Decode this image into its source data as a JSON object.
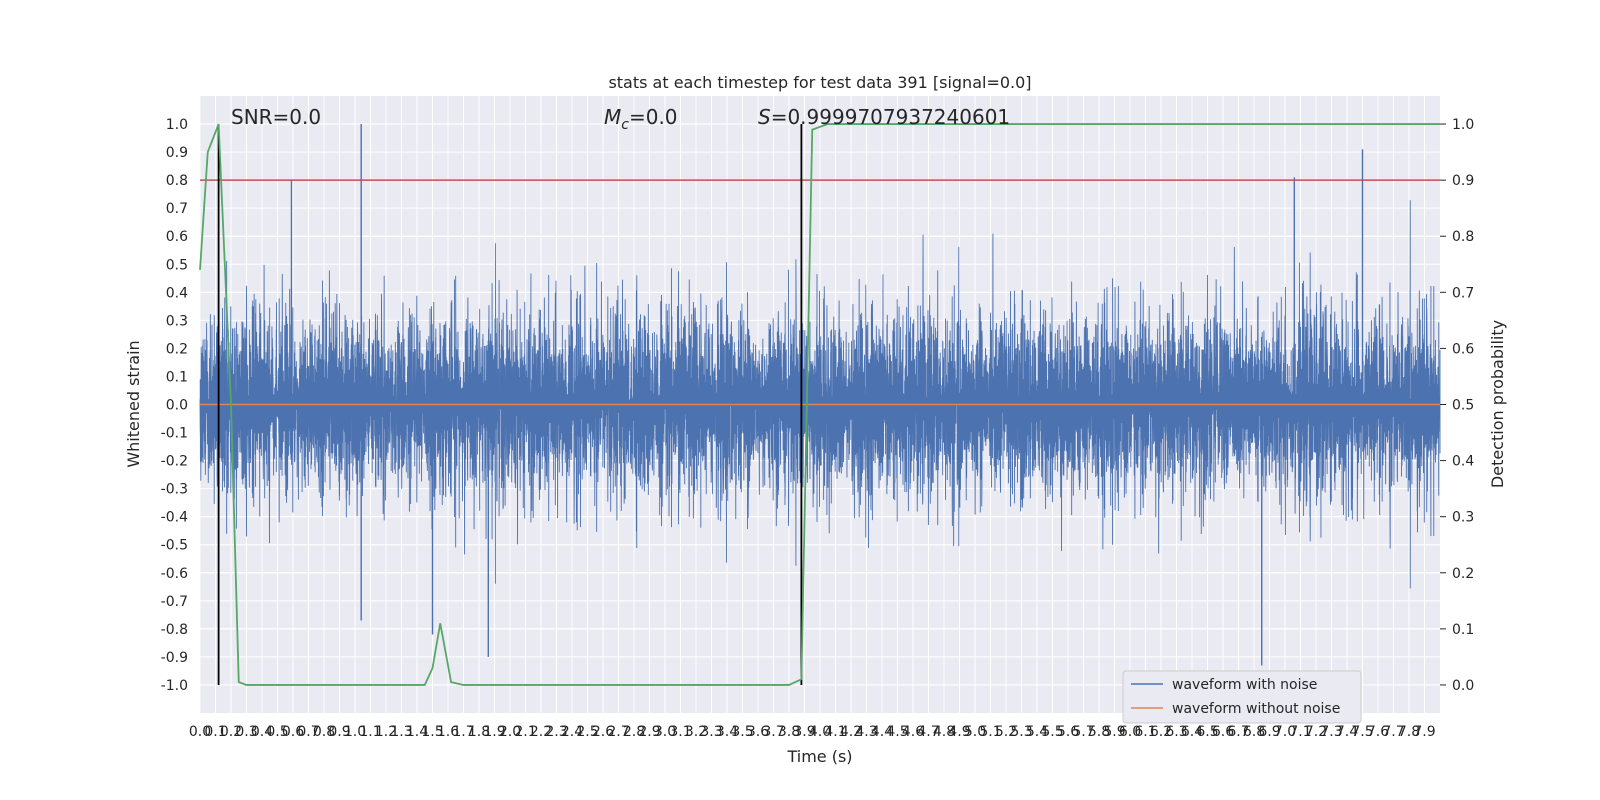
{
  "chart_data": {
    "type": "line",
    "title": "stats at each timestep for test data 391 [signal=0.0]",
    "xlabel": "Time (s)",
    "ylabel": "Whitened strain",
    "y2label": "Detection probability",
    "xlim": [
      0.0,
      8.0
    ],
    "ylim": [
      -1.1,
      1.1
    ],
    "y2lim": [
      -0.05,
      1.05
    ],
    "x_ticks": [
      "0.0",
      "0.1",
      "0.2",
      "0.3",
      "0.4",
      "0.5",
      "0.6",
      "0.7",
      "0.8",
      "0.9",
      "1.0",
      "1.1",
      "1.2",
      "1.3",
      "1.4",
      "1.5",
      "1.6",
      "1.7",
      "1.8",
      "1.9",
      "2.0",
      "2.1",
      "2.2",
      "2.3",
      "2.4",
      "2.5",
      "2.6",
      "2.7",
      "2.8",
      "2.9",
      "3.0",
      "3.1",
      "3.2",
      "3.3",
      "3.4",
      "3.5",
      "3.6",
      "3.7",
      "3.8",
      "3.9",
      "4.0",
      "4.1",
      "4.2",
      "4.3",
      "4.4",
      "4.5",
      "4.6",
      "4.7",
      "4.8",
      "4.9",
      "5.0",
      "5.1",
      "5.2",
      "5.3",
      "5.4",
      "5.5",
      "5.6",
      "5.7",
      "5.8",
      "5.9",
      "6.0",
      "6.1",
      "6.2",
      "6.3",
      "6.4",
      "6.5",
      "6.6",
      "6.7",
      "6.8",
      "6.9",
      "7.0",
      "7.1",
      "7.2",
      "7.3",
      "7.4",
      "7.5",
      "7.6",
      "7.7",
      "7.8",
      "7.9"
    ],
    "y_ticks": [
      "1.0",
      "0.9",
      "0.8",
      "0.7",
      "0.6",
      "0.5",
      "0.4",
      "0.3",
      "0.2",
      "0.1",
      "0.0",
      "-0.1",
      "-0.2",
      "-0.3",
      "-0.4",
      "-0.5",
      "-0.6",
      "-0.7",
      "-0.8",
      "-0.9",
      "-1.0"
    ],
    "y2_ticks": [
      "1.0",
      "0.9",
      "0.8",
      "0.7",
      "0.6",
      "0.5",
      "0.4",
      "0.3",
      "0.2",
      "0.1",
      "0.0"
    ],
    "annotations": {
      "snr": "SNR=0.0",
      "mc_symbol": "M",
      "mc_sub": "c",
      "mc_value": "=0.0",
      "s_symbol": "S",
      "s_value": "=0.9999707937240601"
    },
    "legend": {
      "placement": "lower-right",
      "entries": [
        "waveform with noise",
        "waveform without noise"
      ]
    },
    "vertical_lines_x": [
      0.12,
      3.88
    ],
    "threshold_probability": 0.9,
    "series": [
      {
        "name": "waveform with noise",
        "axis": "left",
        "color": "#4c72b0",
        "noise_rms": 0.17,
        "peaks": [
          [
            1.04,
            1.0
          ],
          [
            7.5,
            0.91
          ],
          [
            7.06,
            0.81
          ],
          [
            0.59,
            0.8
          ],
          [
            1.04,
            -0.77
          ],
          [
            1.5,
            -0.82
          ],
          [
            1.86,
            -0.9
          ],
          [
            6.85,
            -0.93
          ]
        ]
      },
      {
        "name": "waveform without noise",
        "axis": "left",
        "color": "#dd8452",
        "constant": 0.0
      },
      {
        "name": "",
        "axis": "right",
        "color": "#55a868",
        "x": [
          0.0,
          0.05,
          0.12,
          0.2,
          0.25,
          0.3,
          1.0,
          1.38,
          1.45,
          1.5,
          1.55,
          1.62,
          1.7,
          2.0,
          3.0,
          3.8,
          3.88,
          3.95,
          4.05,
          5.0,
          6.0,
          7.0,
          8.0
        ],
        "y": [
          0.74,
          0.95,
          1.0,
          0.5,
          0.005,
          0.0,
          0.0,
          0.0,
          0.0,
          0.03,
          0.11,
          0.005,
          0.0,
          0.0,
          0.0,
          0.0,
          0.01,
          0.99,
          1.0,
          1.0,
          1.0,
          1.0,
          1.0
        ]
      }
    ],
    "colors": {
      "background": "#eaeaf2",
      "grid": "#ffffff",
      "threshold_line": "#c44e52",
      "vertical_line": "#000000"
    }
  }
}
